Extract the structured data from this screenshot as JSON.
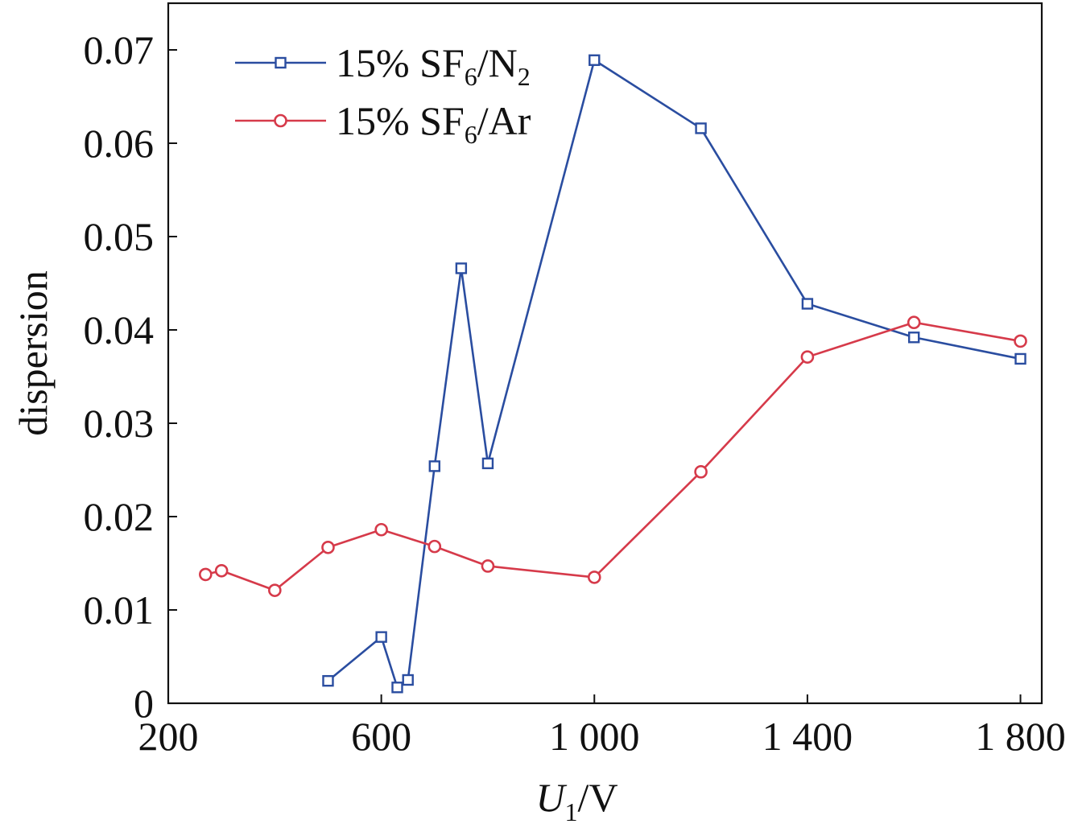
{
  "chart_data": {
    "type": "line",
    "title": "",
    "xlabel": {
      "main": "U",
      "sub": "1",
      "unit": "/V"
    },
    "ylabel": "dispersion",
    "xlim": [
      200,
      1840
    ],
    "ylim": [
      0,
      0.075
    ],
    "xticks": [
      200,
      600,
      1000,
      1400,
      1800
    ],
    "xtick_labels": [
      "200",
      "600",
      "1 000",
      "1 400",
      "1 800"
    ],
    "yticks": [
      0,
      0.01,
      0.02,
      0.03,
      0.04,
      0.05,
      0.06,
      0.07
    ],
    "ytick_labels": [
      "0",
      "0.01",
      "0.02",
      "0.03",
      "0.04",
      "0.05",
      "0.06",
      "0.07"
    ],
    "grid": false,
    "legend_position": "top-left",
    "series": [
      {
        "name": "15% SF6/N2",
        "legend": {
          "prefix": "15% SF",
          "sub1": "6",
          "mid": "/N",
          "sub2": "2"
        },
        "color": "#2a4da0",
        "marker": "square",
        "points": [
          {
            "x": 500,
            "y": 0.0024
          },
          {
            "x": 600,
            "y": 0.0071
          },
          {
            "x": 630,
            "y": 0.0017
          },
          {
            "x": 650,
            "y": 0.0025
          },
          {
            "x": 700,
            "y": 0.0254
          },
          {
            "x": 750,
            "y": 0.0466
          },
          {
            "x": 800,
            "y": 0.0257
          },
          {
            "x": 1000,
            "y": 0.0689
          },
          {
            "x": 1200,
            "y": 0.0616
          },
          {
            "x": 1400,
            "y": 0.0428
          },
          {
            "x": 1600,
            "y": 0.0392
          },
          {
            "x": 1800,
            "y": 0.0369
          }
        ]
      },
      {
        "name": "15% SF6/Ar",
        "legend": {
          "prefix": "15% SF",
          "sub1": "6",
          "mid": "/Ar",
          "sub2": ""
        },
        "color": "#d63a4a",
        "marker": "circle",
        "points": [
          {
            "x": 270,
            "y": 0.0138
          },
          {
            "x": 300,
            "y": 0.0142
          },
          {
            "x": 400,
            "y": 0.0121
          },
          {
            "x": 500,
            "y": 0.0167
          },
          {
            "x": 600,
            "y": 0.0186
          },
          {
            "x": 700,
            "y": 0.0168
          },
          {
            "x": 800,
            "y": 0.0147
          },
          {
            "x": 1000,
            "y": 0.0135
          },
          {
            "x": 1200,
            "y": 0.0248
          },
          {
            "x": 1400,
            "y": 0.0371
          },
          {
            "x": 1600,
            "y": 0.0408
          },
          {
            "x": 1800,
            "y": 0.0388
          }
        ]
      }
    ]
  }
}
